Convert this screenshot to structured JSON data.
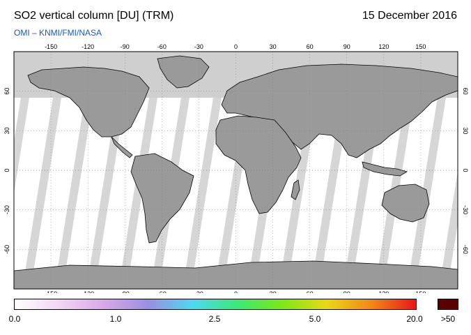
{
  "header": {
    "title": "SO2 vertical column [DU] (TRM)",
    "date": "15 December 2016",
    "subtitle": "OMI  –  KNMI/FMI/NASA"
  },
  "map": {
    "projection": "equirectangular",
    "longitude_ticks": [
      "-150",
      "-120",
      "-90",
      "-60",
      "-30",
      "0",
      "30",
      "60",
      "90",
      "120",
      "150"
    ],
    "latitude_ticks": [
      "60",
      "30",
      "0",
      "-30",
      "-60"
    ],
    "land_color": "#9a9a9a",
    "no_data_color": "#cfcfcf",
    "swath_color": "#d6d6d6",
    "ocean_color": "#ffffff"
  },
  "colorbar": {
    "labels": [
      "0.0",
      "1.0",
      "2.5",
      "5.0",
      "20.0"
    ],
    "over_label": ">50",
    "over_color": "#5a0000",
    "gradient_colors": [
      "#ffffff",
      "#f3d6f3",
      "#d8a8e8",
      "#9a8fe0",
      "#4fd8f0",
      "#3ee878",
      "#7ce818",
      "#e8d818",
      "#f08818",
      "#e81818"
    ]
  }
}
